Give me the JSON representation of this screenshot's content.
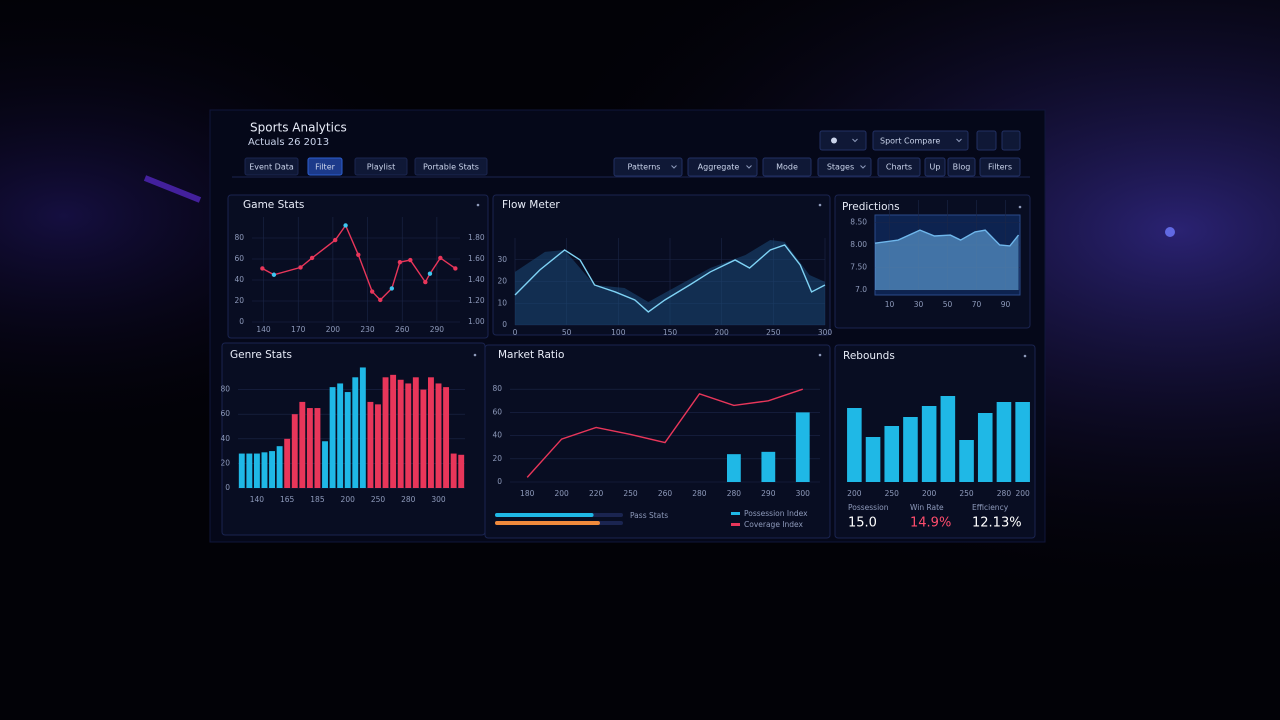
{
  "header": {
    "title": "Sports Analytics",
    "subtitle": "Actuals 26 2013"
  },
  "tabs": [
    "Event Data",
    "Filter",
    "Playlist",
    "Portable Stats"
  ],
  "active_tab": 1,
  "toolbar": [
    "Patterns",
    "Aggregate",
    "Mode",
    "Stages",
    "Charts",
    "Up",
    "Blog",
    "Filters"
  ],
  "compare": "Sport Compare",
  "chart_data": [
    {
      "type": "line",
      "title": "Game Stats",
      "markers": true,
      "grid": true,
      "xlim": [
        130,
        310
      ],
      "xticks": [
        140,
        170,
        200,
        230,
        260,
        290
      ],
      "ylim": [
        0,
        100
      ],
      "yticks": [
        0,
        20,
        40,
        60,
        80
      ],
      "y2lim": [
        1.0,
        2.0
      ],
      "y2ticks": [
        {
          "value": 1.0,
          "label": "1.00"
        },
        {
          "value": 1.2,
          "label": "1.20"
        },
        {
          "value": 1.4,
          "label": "1.40"
        },
        {
          "value": 1.6,
          "label": "1.60"
        },
        {
          "value": 1.8,
          "label": "1.80"
        }
      ],
      "series": [
        {
          "color": "#e8365a",
          "x": [
            139,
            149,
            172,
            182,
            202,
            211,
            222,
            234,
            241,
            251,
            258,
            267,
            280,
            284,
            293,
            306
          ],
          "values": [
            51,
            45,
            52,
            61,
            78,
            92,
            64,
            29,
            21,
            32,
            57,
            59,
            38,
            46,
            61,
            51
          ]
        }
      ]
    },
    {
      "type": "area",
      "title": "Flow Meter",
      "grid": true,
      "xlim": [
        0,
        300
      ],
      "xticks": [
        0,
        50,
        100,
        150,
        200,
        250,
        300
      ],
      "ylim": [
        0,
        40
      ],
      "yticks": [
        0,
        10,
        20,
        30
      ],
      "series": [
        {
          "color": "#1b4a78",
          "fill": true,
          "x": [
            0,
            29,
            48,
            77,
            106,
            129,
            150,
            189,
            223,
            247,
            261,
            285,
            300
          ],
          "values": [
            24.4,
            33.6,
            34.5,
            18.4,
            17.0,
            10.6,
            16.1,
            26.2,
            32.2,
            39.1,
            38.2,
            23.0,
            19.8
          ]
        },
        {
          "color": "#7fd3f5",
          "fill": false,
          "x": [
            0,
            24,
            48,
            63,
            77,
            97,
            116,
            129,
            145,
            169,
            189,
            213,
            227,
            247,
            261,
            276,
            287,
            300
          ],
          "values": [
            13.8,
            25.3,
            34.5,
            29.9,
            18.4,
            15.2,
            11.5,
            6.0,
            11.5,
            18.4,
            24.4,
            29.9,
            26.2,
            34.5,
            36.8,
            27.6,
            15.2,
            18.4
          ]
        }
      ]
    },
    {
      "type": "area",
      "title": "Predictions",
      "grid": true,
      "xlim": [
        0,
        100
      ],
      "xticks": [
        10,
        30,
        50,
        70,
        90
      ],
      "ylim": [
        7,
        9
      ],
      "yticks": [
        {
          "value": 7,
          "label": "7.0"
        },
        {
          "value": 7.5,
          "label": "7.50"
        },
        {
          "value": 8,
          "label": "8.00"
        },
        {
          "value": 8.5,
          "label": "8.50"
        }
      ],
      "series": [
        {
          "color": "#6fb7ec",
          "fill": true,
          "x": [
            0,
            16,
            31,
            41,
            52,
            59,
            69,
            76,
            86,
            93,
            99
          ],
          "values": [
            8.04,
            8.11,
            8.33,
            8.2,
            8.22,
            8.11,
            8.29,
            8.33,
            8.0,
            7.98,
            8.22
          ]
        }
      ]
    },
    {
      "type": "bar",
      "title": "Genre Stats",
      "grid": true,
      "ylim": [
        0,
        100
      ],
      "yticks": [
        0,
        20,
        40,
        60,
        80
      ],
      "categories": [
        null,
        null,
        "140",
        null,
        null,
        null,
        "165",
        null,
        null,
        null,
        "185",
        null,
        null,
        null,
        "200",
        null,
        null,
        null,
        "250",
        null,
        null,
        null,
        "280",
        null,
        null,
        null,
        "300",
        null,
        null,
        null
      ],
      "values": [
        28,
        28,
        28,
        29,
        30,
        34,
        40,
        60,
        70,
        65,
        65,
        38,
        82,
        85,
        78,
        90,
        98,
        70,
        68,
        90,
        92,
        88,
        85,
        90,
        80,
        90,
        85,
        82,
        28,
        27
      ],
      "colors": [
        "#1fb8e6",
        "#1fb8e6",
        "#1fb8e6",
        "#1fb8e6",
        "#1fb8e6",
        "#1fb8e6",
        "#e8365a",
        "#e8365a",
        "#e8365a",
        "#e8365a",
        "#e8365a",
        "#1fb8e6",
        "#1fb8e6",
        "#1fb8e6",
        "#1fb8e6",
        "#1fb8e6",
        "#1fb8e6",
        "#e8365a",
        "#e8365a",
        "#e8365a",
        "#e8365a",
        "#e8365a",
        "#e8365a",
        "#e8365a",
        "#e8365a",
        "#e8365a",
        "#e8365a",
        "#e8365a",
        "#e8365a",
        "#e8365a"
      ]
    },
    {
      "type": "combo",
      "title": "Market Ratio",
      "grid": true,
      "ylim": [
        0,
        100
      ],
      "yticks": [
        0,
        20,
        40,
        60,
        80
      ],
      "categories": [
        "180",
        "200",
        "220",
        "250",
        "260",
        "280",
        "280",
        "290",
        "300"
      ],
      "series": [
        {
          "name": "Possession Index",
          "type": "bar",
          "color": "#1fb8e6",
          "values": [
            null,
            null,
            null,
            null,
            null,
            null,
            24,
            26,
            60
          ]
        },
        {
          "name": "Coverage Index",
          "type": "line",
          "color": "#e8365a",
          "values": [
            4,
            37,
            47,
            41,
            34,
            76,
            66,
            70,
            80
          ]
        }
      ]
    },
    {
      "type": "bar",
      "title": "Rebounds",
      "grid": false,
      "ylim": [
        0,
        100
      ],
      "categories": [
        "200",
        null,
        "250",
        null,
        "200",
        null,
        "250",
        null,
        "280",
        "200"
      ],
      "values": [
        74,
        45,
        56,
        65,
        76,
        86,
        42,
        69,
        80,
        80
      ],
      "color": "#1fb8e6"
    }
  ],
  "progress": {
    "label": "Pass Stats",
    "xlim": [
      0,
      100
    ],
    "values": [
      77,
      82
    ],
    "colors": [
      "#1fb8e6",
      "#f08a3c"
    ]
  },
  "stats": [
    {
      "label": "Possession",
      "value": "15.0",
      "color": "#ffffff"
    },
    {
      "label": "Win Rate",
      "value": "14.9%",
      "color": "#ff4d6d"
    },
    {
      "label": "Efficiency",
      "value": "12.13%",
      "color": "#ffffff"
    }
  ]
}
